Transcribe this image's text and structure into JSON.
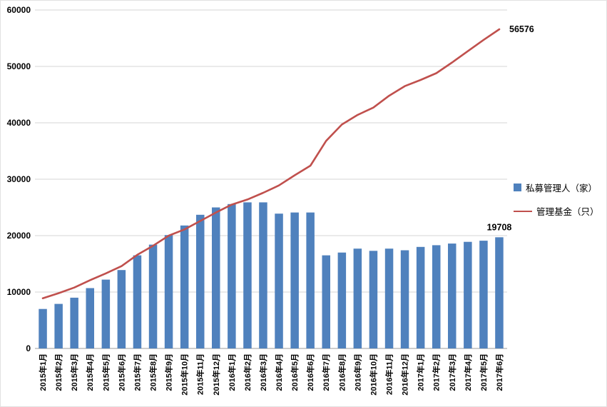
{
  "chart_data": {
    "type": "bar",
    "subtype": "bar+line combo",
    "title": "",
    "xlabel": "",
    "ylabel": "",
    "ylim": [
      0,
      60000
    ],
    "ytick_interval": 10000,
    "yticks": [
      0,
      10000,
      20000,
      30000,
      40000,
      50000,
      60000
    ],
    "grid": true,
    "legend_position": "right",
    "categories": [
      "2015年1月",
      "2015年2月",
      "2015年3月",
      "2015年4月",
      "2015年5月",
      "2015年6月",
      "2015年7月",
      "2015年8月",
      "2015年9月",
      "2015年10月",
      "2015年11月",
      "2015年12月",
      "2016年1月",
      "2016年2月",
      "2016年3月",
      "2016年4月",
      "2016年5月",
      "2016年6月",
      "2016年7月",
      "2016年8月",
      "2016年9月",
      "2016年10月",
      "2016年11月",
      "2016年12月",
      "2017年1月",
      "2017年2月",
      "2017年3月",
      "2017年4月",
      "2017年5月",
      "2017年6月"
    ],
    "series": [
      {
        "name": "私募管理人（家）",
        "type": "bar",
        "color": "#4F81BD",
        "values": [
          7000,
          7900,
          9000,
          10700,
          12200,
          13900,
          16500,
          18400,
          20100,
          21800,
          23700,
          25000,
          25600,
          25900,
          25900,
          23900,
          24100,
          24100,
          16500,
          17000,
          17700,
          17300,
          17700,
          17400,
          18000,
          18300,
          18600,
          18900,
          19100,
          19708
        ]
      },
      {
        "name": "管理基金（只）",
        "type": "line",
        "color": "#C0504D",
        "values": [
          8900,
          9800,
          10800,
          12100,
          13300,
          14600,
          16600,
          18200,
          20000,
          21100,
          22600,
          24100,
          25500,
          26400,
          27600,
          28900,
          30700,
          32400,
          36800,
          39700,
          41400,
          42700,
          44800,
          46500,
          47600,
          48800,
          50700,
          52700,
          54700,
          56576
        ]
      }
    ],
    "annotations": [
      {
        "text": "56576",
        "series": 1,
        "index": 29
      },
      {
        "text": "19708",
        "series": 0,
        "index": 29
      }
    ],
    "colors": {
      "gridline": "#d6d6d6",
      "axis": "#9b9b9b",
      "label_text": "#000000"
    }
  }
}
